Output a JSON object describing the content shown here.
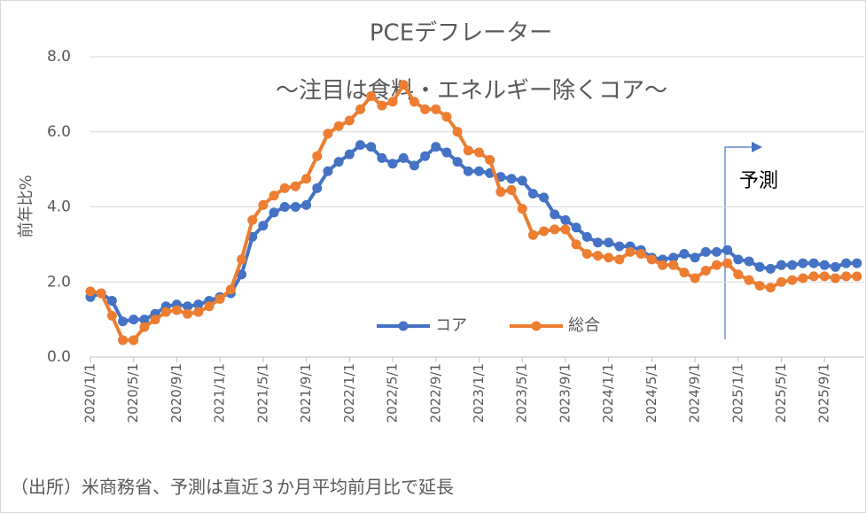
{
  "chart_data": {
    "type": "line",
    "title": "PCEデフレーター",
    "subtitle": "～注目は食料・エネルギー除くコア～",
    "y_label": "前年比%",
    "annotation": "予測",
    "source": "（出所）米商務省、予測は直近３か月平均前月比で延長",
    "categories": [
      "2020/1/1",
      null,
      null,
      null,
      "2020/5/1",
      null,
      null,
      null,
      "2020/9/1",
      null,
      null,
      null,
      "2021/1/1",
      null,
      null,
      null,
      "2021/5/1",
      null,
      null,
      null,
      "2021/9/1",
      null,
      null,
      null,
      "2022/1/1",
      null,
      null,
      null,
      "2022/5/1",
      null,
      null,
      null,
      "2022/9/1",
      null,
      null,
      null,
      "2023/1/1",
      null,
      null,
      null,
      "2023/5/1",
      null,
      null,
      null,
      "2023/9/1",
      null,
      null,
      null,
      "2024/1/1",
      null,
      null,
      null,
      "2024/5/1",
      null,
      null,
      null,
      "2024/9/1",
      null,
      null,
      null,
      "2025/1/1",
      null,
      null,
      null,
      "2025/5/1",
      null,
      null,
      null,
      "2025/9/1",
      null,
      null,
      null
    ],
    "series": [
      {
        "name": "コア",
        "color": "#4472c4",
        "values": [
          1.6,
          1.7,
          1.5,
          0.95,
          1.0,
          1.0,
          1.15,
          1.35,
          1.4,
          1.35,
          1.4,
          1.5,
          1.6,
          1.7,
          2.2,
          3.2,
          3.5,
          3.85,
          4.0,
          4.0,
          4.05,
          4.5,
          4.95,
          5.2,
          5.4,
          5.65,
          5.6,
          5.3,
          5.15,
          5.3,
          5.1,
          5.35,
          5.6,
          5.45,
          5.2,
          4.95,
          4.95,
          4.9,
          4.8,
          4.75,
          4.7,
          4.35,
          4.25,
          3.8,
          3.65,
          3.45,
          3.2,
          3.05,
          3.05,
          2.95,
          2.95,
          2.85,
          2.65,
          2.6,
          2.65,
          2.75,
          2.65,
          2.8,
          2.8,
          2.85,
          2.6,
          2.55,
          2.4,
          2.35,
          2.45,
          2.45,
          2.5,
          2.5,
          2.45,
          2.4,
          2.5,
          2.5
        ]
      },
      {
        "name": "総合",
        "color": "#ed7d31",
        "values": [
          1.75,
          1.7,
          1.1,
          0.45,
          0.45,
          0.8,
          1.0,
          1.2,
          1.25,
          1.15,
          1.2,
          1.35,
          1.55,
          1.8,
          2.6,
          3.65,
          4.05,
          4.3,
          4.5,
          4.55,
          4.75,
          5.35,
          5.95,
          6.15,
          6.3,
          6.6,
          6.95,
          6.7,
          6.8,
          7.25,
          6.8,
          6.6,
          6.6,
          6.4,
          6.0,
          5.5,
          5.45,
          5.25,
          4.4,
          4.45,
          3.95,
          3.25,
          3.35,
          3.4,
          3.4,
          3.0,
          2.75,
          2.7,
          2.65,
          2.6,
          2.8,
          2.75,
          2.6,
          2.45,
          2.45,
          2.25,
          2.1,
          2.3,
          2.45,
          2.5,
          2.2,
          2.05,
          1.9,
          1.85,
          2.0,
          2.05,
          2.1,
          2.15,
          2.15,
          2.1,
          2.15,
          2.15
        ]
      }
    ],
    "ylim": [
      0,
      8
    ],
    "yticks": [
      {
        "value": 0,
        "label": "0.0"
      },
      {
        "value": 2,
        "label": "2.0"
      },
      {
        "value": 4,
        "label": "4.0"
      },
      {
        "value": 6,
        "label": "6.0"
      },
      {
        "value": 8,
        "label": "8.0"
      }
    ],
    "grid": true
  }
}
